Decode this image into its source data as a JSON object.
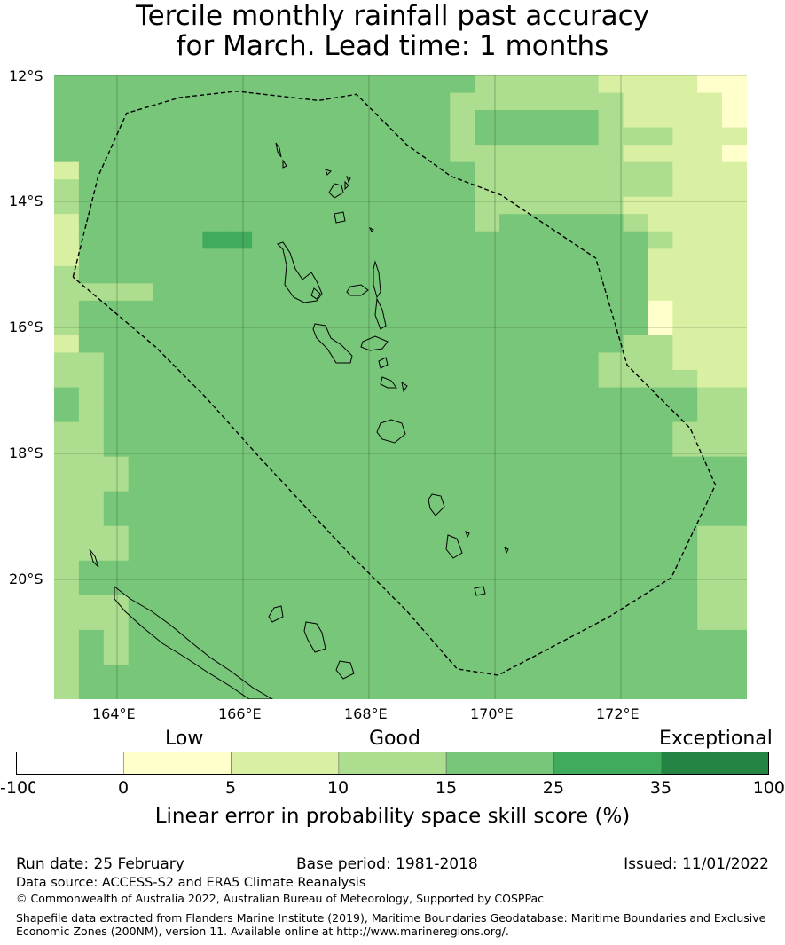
{
  "title": {
    "line1": "Tercile monthly rainfall past accuracy",
    "line2": "for March. Lead time: 1 months"
  },
  "map": {
    "lat_labels": [
      "12°S",
      "14°S",
      "16°S",
      "18°S",
      "20°S"
    ],
    "lon_labels": [
      "164°E",
      "166°E",
      "168°E",
      "170°E",
      "172°E"
    ],
    "extent": {
      "lon_min": 163,
      "lon_max": 174,
      "lat_min": -21.9,
      "lat_max": -12
    },
    "grid_rows_note": "skill class index per cell: 0=<0,1=0-5,2=5-10,3=10-15,4=15-25,5=25-35,6=35-100",
    "grid": [
      "4444444444444444433333222211",
      "4444444444444444333333322221",
      "4444444444444444344444322221",
      "4444444444444444344444333222",
      "4444444444444444333333322221",
      "2444444444444444433333333222",
      "3444444444444444433333333222",
      "3444444444444444433333322222",
      "2444444444444444434444432222",
      "2444445544444444444444443222",
      "2444444444444444444444442222",
      "3444444444444444444444442222",
      "3333444444444444444444442222",
      "3444444444444444444444441222",
      "3444444444444444444444441222",
      "2444444444444444444444433222",
      "3344444444444444444444333222",
      "3344444444444444444444333322",
      "4344444444444444444444444433",
      "4344444444444444444444444433",
      "3344444444444444444444444333",
      "3344444444444444444444444333",
      "3334444444444444444444444444",
      "3334444444444444444444444444",
      "3344444444444444444444444444",
      "3344444444444444444444444444",
      "3334444444444444444444444433",
      "3334444444444444444444444433",
      "3444444444444444444444444433",
      "3444444444444444444444444433",
      "3334444444444444444444444433",
      "3334444444444444444444444433",
      "3434444444444444444444444444",
      "3434444444444444444444444444",
      "3444444444444444444444444444",
      "3444444444444444444444444444"
    ],
    "eez_outline_lonlat": [
      [
        163.3,
        -15.2
      ],
      [
        163.7,
        -13.6
      ],
      [
        164.15,
        -12.6
      ],
      [
        165.0,
        -12.35
      ],
      [
        165.9,
        -12.25
      ],
      [
        167.2,
        -12.4
      ],
      [
        167.8,
        -12.3
      ],
      [
        168.6,
        -13.1
      ],
      [
        169.3,
        -13.6
      ],
      [
        170.1,
        -13.9
      ],
      [
        171.6,
        -14.9
      ],
      [
        172.1,
        -16.6
      ],
      [
        173.1,
        -17.6
      ],
      [
        173.5,
        -18.5
      ],
      [
        172.8,
        -19.97
      ],
      [
        171.8,
        -20.6
      ],
      [
        170.05,
        -21.52
      ],
      [
        169.4,
        -21.42
      ],
      [
        168.6,
        -20.5
      ],
      [
        167.6,
        -19.5
      ],
      [
        166.25,
        -18.05
      ],
      [
        165.4,
        -17.1
      ],
      [
        164.6,
        -16.3
      ],
      [
        163.3,
        -15.2
      ]
    ]
  },
  "colorbar": {
    "category_labels": [
      "Low",
      "Good",
      "Exceptional"
    ],
    "tick_labels": [
      "-100",
      "0",
      "5",
      "10",
      "15",
      "25",
      "35",
      "100"
    ],
    "colors": [
      "#ffffff",
      "#ffffcc",
      "#d9f0a3",
      "#addd8e",
      "#78c679",
      "#41ab5d",
      "#238443"
    ],
    "xlabel": "Linear error in probability space skill score (%)"
  },
  "footer": {
    "run_date": "Run date: 25 February",
    "base_period": "Base period: 1981-2018",
    "issued": "Issued: 11/01/2022",
    "data_source": "Data source: ACCESS-S2 and ERA5 Climate Reanalysis",
    "copyright": "© Commonwealth of Australia 2022, Australian Bureau of Meteorology, Supported by COSPPac",
    "shapefile_line1": "Shapefile data extracted from Flanders Marine Institute (2019), Maritime Boundaries Geodatabase: Maritime Boundaries and Exclusive",
    "shapefile_line2": "Economic Zones (200NM), version 11. Available online at http://www.marineregions.org/."
  }
}
